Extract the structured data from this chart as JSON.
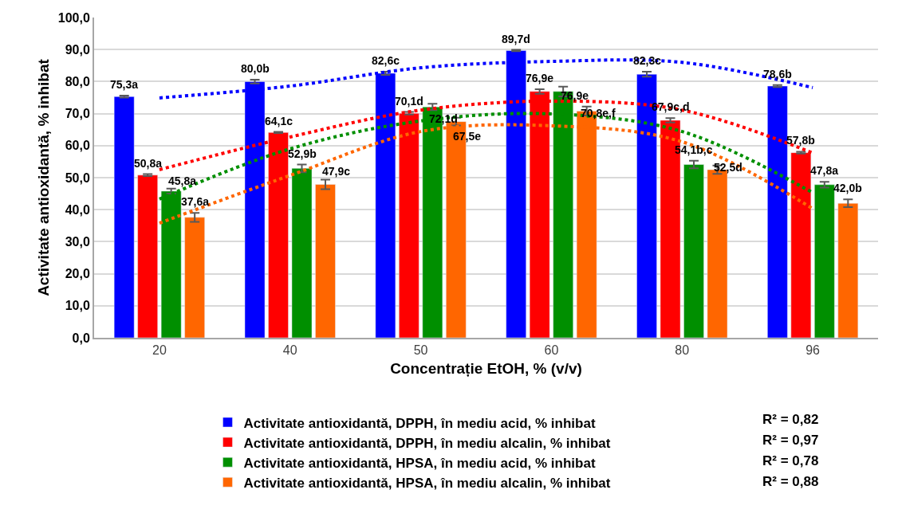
{
  "chart_data": {
    "type": "bar",
    "xlabel": "Concentrație EtOH, % (v/v)",
    "ylabel": "Activitate antioxidantă, % inhibat",
    "categories": [
      "20",
      "40",
      "50",
      "60",
      "80",
      "96"
    ],
    "series": [
      {
        "name": "Activitate antioxidantă, DPPH, în mediu acid, % inhibat",
        "color": "#0000ff",
        "values": [
          75.3,
          80.0,
          82.6,
          89.7,
          82.3,
          78.6
        ],
        "errors": [
          0.3,
          0.6,
          0.5,
          0.2,
          0.8,
          0.3
        ],
        "value_labels": [
          "75,3a",
          "80,0b",
          "82,6c",
          "89,7d",
          "82,3c",
          "78,6b"
        ]
      },
      {
        "name": "Activitate antioxidantă, DPPH, în mediu alcalin, % inhibat",
        "color": "#ff0000",
        "values": [
          50.8,
          64.1,
          70.1,
          76.9,
          67.9,
          57.8
        ],
        "errors": [
          0.3,
          0.2,
          0.4,
          0.7,
          0.7,
          0.3
        ],
        "value_labels": [
          "50,8a",
          "64,1c",
          "70,1d",
          "76,9e",
          "67,9c,d",
          "57,8b"
        ]
      },
      {
        "name": "Activitate antioxidantă, HPSA, în mediu acid, % inhibat",
        "color": "#008f00",
        "values": [
          45.8,
          52.9,
          72.1,
          76.9,
          54.1,
          47.8
        ],
        "errors": [
          0.8,
          1.2,
          1.0,
          1.5,
          1.2,
          0.9
        ],
        "value_labels": [
          "45,8a",
          "52,9b",
          "72,1d",
          "76,9e",
          "54,1b,c",
          "47,8a"
        ]
      },
      {
        "name": "Activitate antioxidantă, HPSA, în mediu alcalin, % inhibat",
        "color": "#ff6600",
        "values": [
          37.6,
          47.9,
          67.5,
          70.8,
          52.5,
          42.0
        ],
        "errors": [
          1.4,
          1.5,
          1.2,
          1.4,
          1.3,
          1.2
        ],
        "value_labels": [
          "37,6a",
          "47,9c",
          "67,5e",
          "70,8e,f",
          "52,5d",
          "42,0b"
        ]
      },
      {
        "type": "line",
        "color": "#0000ff",
        "line_style": "dotted",
        "marker": "none",
        "values": [
          74.9,
          78.6,
          84.3,
          86.3,
          86.0,
          78.1
        ]
      },
      {
        "type": "line",
        "color": "#ff0000",
        "line_style": "dotted",
        "marker": "none",
        "values": [
          52.5,
          62.7,
          71.1,
          73.9,
          71.1,
          57.7
        ]
      },
      {
        "type": "line",
        "color": "#008f00",
        "line_style": "dotted",
        "marker": "none",
        "values": [
          43.3,
          59.0,
          67.7,
          69.9,
          64.4,
          45.3
        ]
      },
      {
        "type": "line",
        "color": "#ff6600",
        "line_style": "dotted",
        "marker": "none",
        "values": [
          35.8,
          50.7,
          64.4,
          66.2,
          61.2,
          40.3
        ]
      }
    ],
    "ylim": [
      0,
      100
    ],
    "yticks": [
      {
        "value": 0,
        "label": "0,0"
      },
      {
        "value": 10,
        "label": "10,0"
      },
      {
        "value": 20,
        "label": "20,0"
      },
      {
        "value": 30,
        "label": "30,0"
      },
      {
        "value": 40,
        "label": "40,0"
      },
      {
        "value": 50,
        "label": "50,0"
      },
      {
        "value": 60,
        "label": "60,0"
      },
      {
        "value": 70,
        "label": "70,0"
      },
      {
        "value": 80,
        "label": "80,0"
      },
      {
        "value": 90,
        "label": "90,0"
      },
      {
        "value": 100,
        "label": "100,0"
      }
    ],
    "grid": "y",
    "legend": "bottom",
    "annotations": [
      "R² = 0,82",
      "R² = 0,97",
      "R² = 0,78",
      "R² = 0,88"
    ]
  }
}
